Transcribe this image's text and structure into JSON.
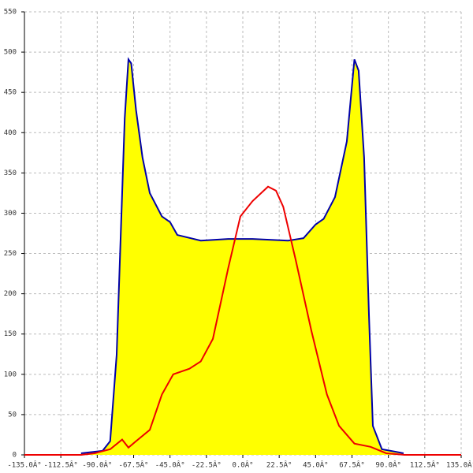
{
  "chart_data": {
    "type": "area",
    "xlim": [
      -135,
      135
    ],
    "ylim": [
      0,
      550
    ],
    "xticks": [
      {
        "value": -135,
        "label": "-135.0Â°"
      },
      {
        "value": -112.5,
        "label": "-112.5Â°"
      },
      {
        "value": -90,
        "label": "-90.0Â°"
      },
      {
        "value": -67.5,
        "label": "-67.5Â°"
      },
      {
        "value": -45,
        "label": "-45.0Â°"
      },
      {
        "value": -22.5,
        "label": "-22.5Â°"
      },
      {
        "value": 0,
        "label": "0.0Â°"
      },
      {
        "value": 22.5,
        "label": "22.5Â°"
      },
      {
        "value": 45,
        "label": "45.0Â°"
      },
      {
        "value": 67.5,
        "label": "67.5Â°"
      },
      {
        "value": 90,
        "label": "90.0Â°"
      },
      {
        "value": 112.5,
        "label": "112.5Â°"
      },
      {
        "value": 135,
        "label": "135.0Â°"
      }
    ],
    "yticks": [
      0,
      50,
      100,
      150,
      200,
      250,
      300,
      350,
      400,
      450,
      500,
      550
    ],
    "grid": true,
    "series": [
      {
        "color": "#0000aa",
        "fill": "#ffff00",
        "x": [
          -100,
          -86.7,
          -82,
          -78,
          -75.5,
          -73,
          -70.7,
          -69,
          -66,
          -62,
          -57.5,
          -50,
          -45,
          -40.5,
          -26,
          -9,
          6,
          28,
          37.5,
          45,
          50,
          57,
          64.3,
          69,
          71.6,
          75,
          78,
          80.4,
          86,
          99.4
        ],
        "values": [
          2,
          5,
          17,
          124,
          271,
          418,
          491,
          486,
          428,
          369,
          325,
          296,
          289,
          273,
          266,
          268,
          268,
          266,
          269,
          286,
          293,
          320,
          389,
          491,
          477,
          369,
          173,
          36,
          7,
          2
        ]
      },
      {
        "color": "#ee0000",
        "x": [
          -135,
          -100,
          -91.6,
          -82,
          -74.6,
          -70.7,
          -66,
          -57.5,
          -50,
          -43,
          -33,
          -26,
          -18.5,
          -9,
          -1.5,
          6,
          15.6,
          20.5,
          25,
          32.7,
          42.4,
          52,
          59.5,
          69,
          79,
          88.7,
          100,
          135
        ],
        "values": [
          0,
          0,
          2,
          7,
          19,
          9,
          17,
          31,
          75,
          100,
          107,
          116,
          144,
          232,
          296,
          315,
          333,
          328,
          308,
          242,
          154,
          75,
          36,
          14,
          10,
          2,
          0,
          0
        ]
      }
    ]
  }
}
